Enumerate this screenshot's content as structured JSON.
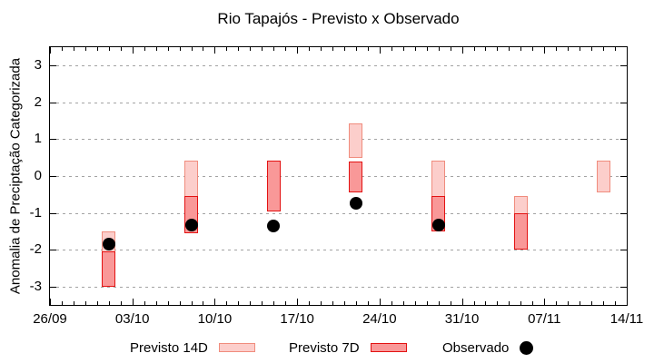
{
  "chart_data": {
    "type": "bar",
    "subtype": "forecast-range-bars-with-observed-dots",
    "title": "Rio Tapajós - Previsto x Observado",
    "ylabel": "Anomalia de Preciptação Categorizada",
    "xlabel": "",
    "ylim": [
      -3.5,
      3.5
    ],
    "yticks": [
      3,
      2,
      1,
      0,
      -1,
      -2,
      -3
    ],
    "xlim_days": [
      0,
      49
    ],
    "xticklabels": [
      {
        "label": "26/09",
        "day": 0
      },
      {
        "label": "03/10",
        "day": 7
      },
      {
        "label": "10/10",
        "day": 14
      },
      {
        "label": "17/10",
        "day": 21
      },
      {
        "label": "24/10",
        "day": 28
      },
      {
        "label": "31/10",
        "day": 35
      },
      {
        "label": "07/11",
        "day": 42
      },
      {
        "label": "14/11",
        "day": 49
      }
    ],
    "minor_tick_every_days": 1,
    "grid": "horizontal-dotted-gray",
    "legend_position": "bottom",
    "colors": {
      "previsto_14d_fill": "#fccecb",
      "previsto_14d_border": "#f08c7d",
      "previsto_7d_fill": "#f99898",
      "previsto_7d_border": "#e31212",
      "observado": "#000000",
      "gridline": "#a3a3a3"
    },
    "series": [
      {
        "name": "Previsto 14D",
        "style": "range-bar",
        "fill": "#fccecb",
        "border": "#f08c7d",
        "points": [
          {
            "date": "01/10",
            "day": 5,
            "low": -3.0,
            "high": -1.5
          },
          {
            "date": "08/10",
            "day": 12,
            "low": -1.55,
            "high": 0.43
          },
          {
            "date": "22/10",
            "day": 26,
            "low": 0.5,
            "high": 1.43
          },
          {
            "date": "29/10",
            "day": 33,
            "low": -1.5,
            "high": 0.43
          },
          {
            "date": "05/11",
            "day": 40,
            "low": -2.0,
            "high": -0.55
          },
          {
            "date": "12/11",
            "day": 47,
            "low": -0.45,
            "high": 0.43
          }
        ]
      },
      {
        "name": "Previsto 7D",
        "style": "range-bar",
        "fill": "#f99898",
        "border": "#e31212",
        "points": [
          {
            "date": "01/10",
            "day": 5,
            "low": -3.0,
            "high": -2.05
          },
          {
            "date": "08/10",
            "day": 12,
            "low": -1.55,
            "high": -0.55
          },
          {
            "date": "15/10",
            "day": 19,
            "low": -0.95,
            "high": 0.43
          },
          {
            "date": "22/10",
            "day": 26,
            "low": -0.45,
            "high": 0.4
          },
          {
            "date": "29/10",
            "day": 33,
            "low": -1.5,
            "high": -0.55
          },
          {
            "date": "05/11",
            "day": 40,
            "low": -2.0,
            "high": -1.0
          }
        ]
      },
      {
        "name": "Observado",
        "style": "dot",
        "color": "#000000",
        "points": [
          {
            "date": "01/10",
            "day": 5,
            "value": -1.85
          },
          {
            "date": "08/10",
            "day": 12,
            "value": -1.33
          },
          {
            "date": "15/10",
            "day": 19,
            "value": -1.35
          },
          {
            "date": "22/10",
            "day": 26,
            "value": -0.75
          },
          {
            "date": "29/10",
            "day": 33,
            "value": -1.33
          }
        ]
      }
    ]
  }
}
